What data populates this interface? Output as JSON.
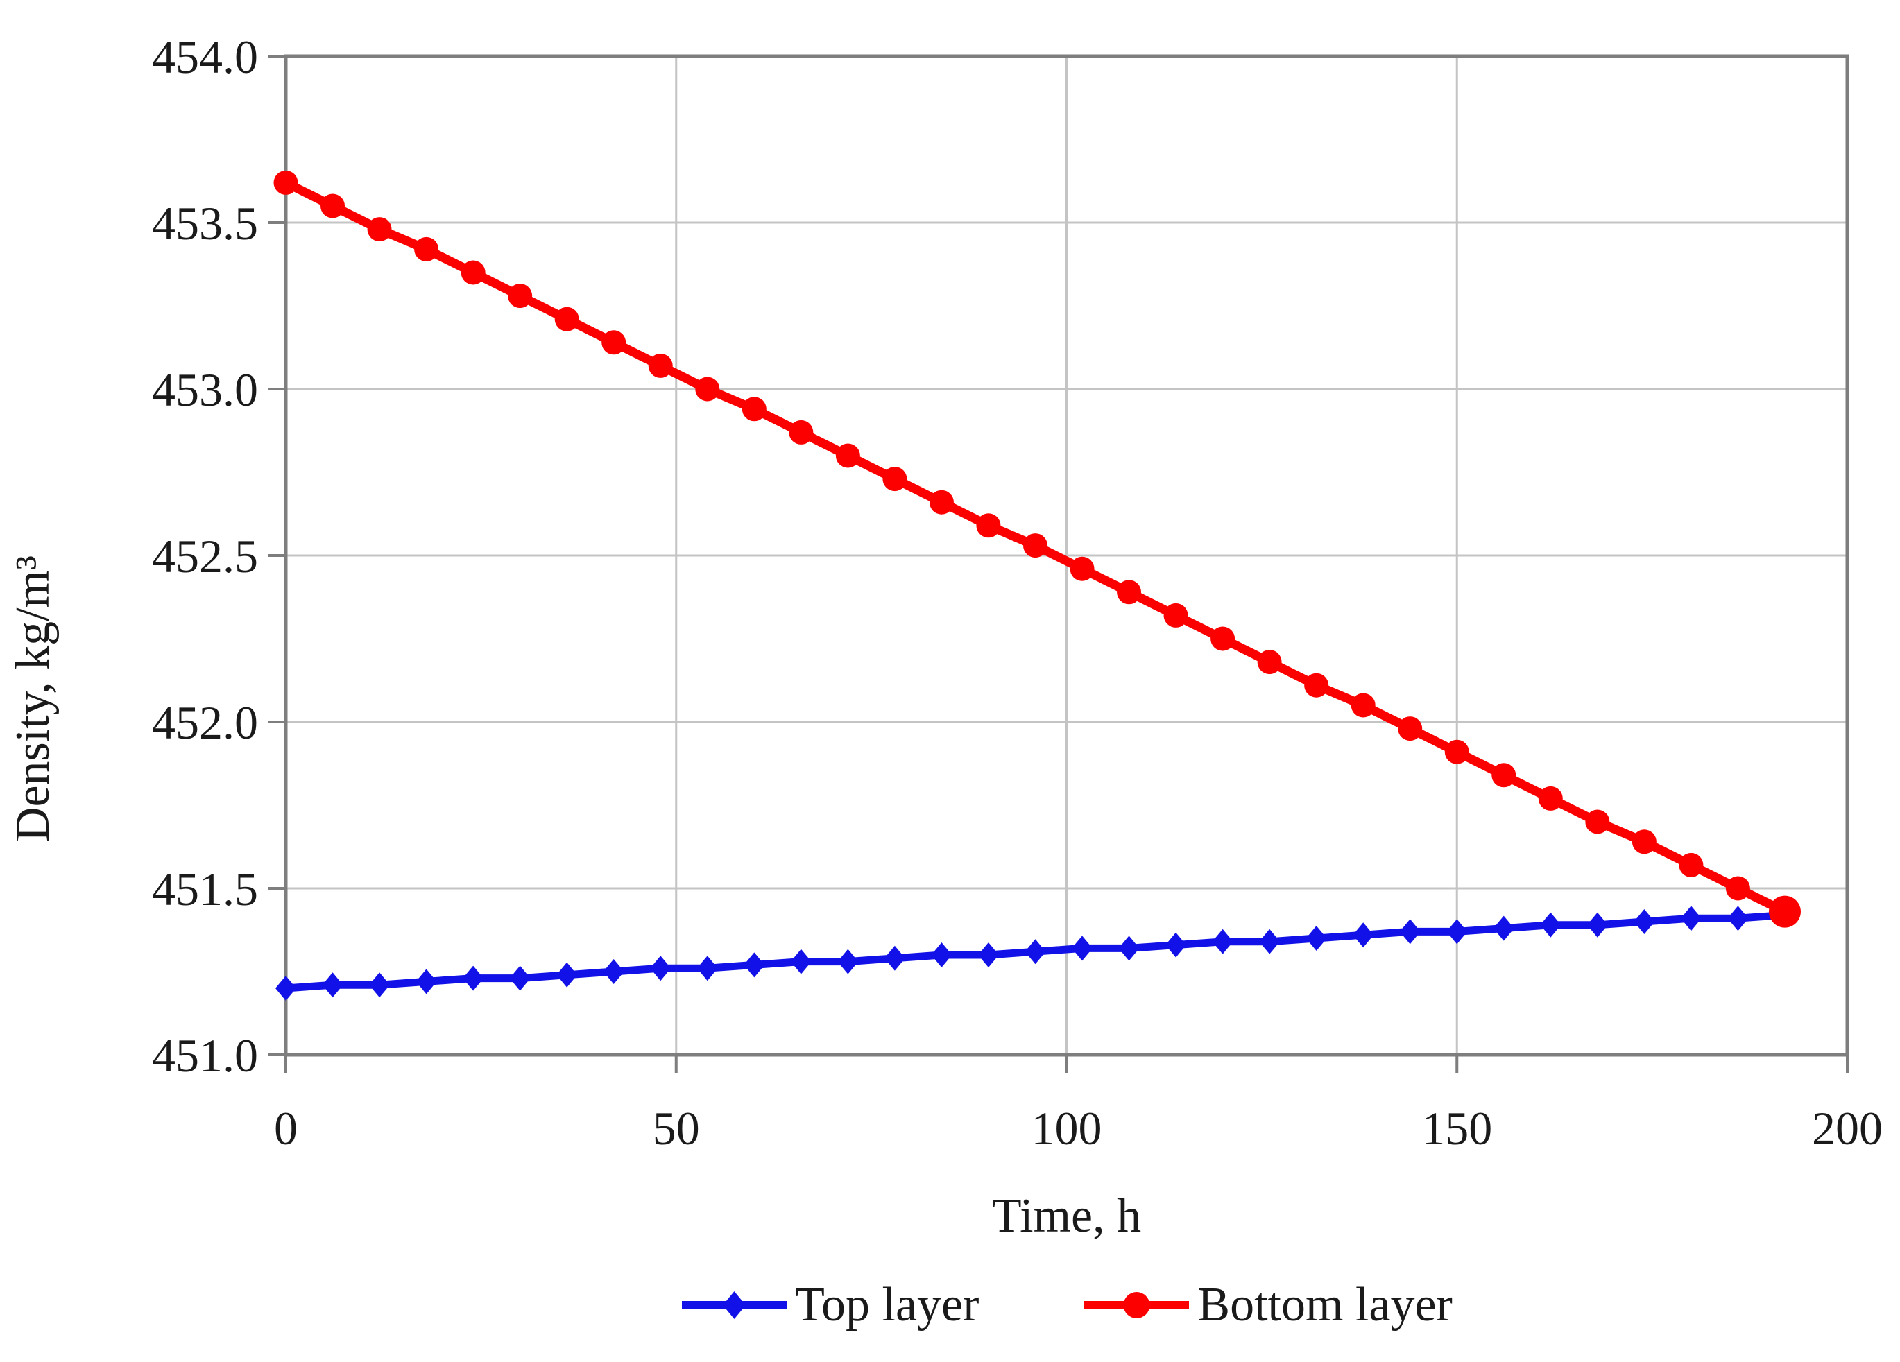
{
  "chart_data": {
    "type": "line",
    "title": "",
    "xlabel": "Time, h",
    "ylabel": "Density, kg/m³",
    "xlim": [
      0,
      200
    ],
    "ylim": [
      451.0,
      454.0
    ],
    "grid": true,
    "legend_position": "bottom",
    "x_tick_labels": [
      "0",
      "50",
      "100",
      "150",
      "200"
    ],
    "x_tick_values": [
      0,
      50,
      100,
      150,
      200
    ],
    "y_tick_labels": [
      "454.0",
      "453.5",
      "453.0",
      "452.5",
      "452.0",
      "451.5",
      "451.0"
    ],
    "y_tick_values": [
      454.0,
      453.5,
      453.0,
      452.5,
      452.0,
      451.5,
      451.0
    ],
    "x": [
      0,
      6,
      12,
      18,
      24,
      30,
      36,
      42,
      48,
      54,
      60,
      66,
      72,
      78,
      84,
      90,
      96,
      102,
      108,
      114,
      120,
      126,
      132,
      138,
      144,
      150,
      156,
      162,
      168,
      174,
      180,
      186,
      192
    ],
    "series": [
      {
        "name": "Top layer",
        "color": "#1212E8",
        "marker": "diamond",
        "values": [
          451.2,
          451.21,
          451.21,
          451.22,
          451.23,
          451.23,
          451.24,
          451.25,
          451.26,
          451.26,
          451.27,
          451.28,
          451.28,
          451.29,
          451.3,
          451.3,
          451.31,
          451.32,
          451.32,
          451.33,
          451.34,
          451.34,
          451.35,
          451.36,
          451.37,
          451.37,
          451.38,
          451.39,
          451.39,
          451.4,
          451.41,
          451.41,
          451.42
        ]
      },
      {
        "name": "Bottom layer",
        "color": "#FC0000",
        "marker": "circle",
        "values": [
          453.62,
          453.55,
          453.48,
          453.42,
          453.35,
          453.28,
          453.21,
          453.14,
          453.07,
          453.0,
          452.94,
          452.87,
          452.8,
          452.73,
          452.66,
          452.59,
          452.53,
          452.46,
          452.39,
          452.32,
          452.25,
          452.18,
          452.11,
          452.05,
          451.98,
          451.91,
          451.84,
          451.77,
          451.7,
          451.64,
          451.57,
          451.5,
          451.43
        ]
      }
    ],
    "colors": {
      "axis": "#7E7E7E",
      "grid": "#C4C4C4",
      "text": "#1A1A1A",
      "background": "#FFFFFF"
    }
  }
}
